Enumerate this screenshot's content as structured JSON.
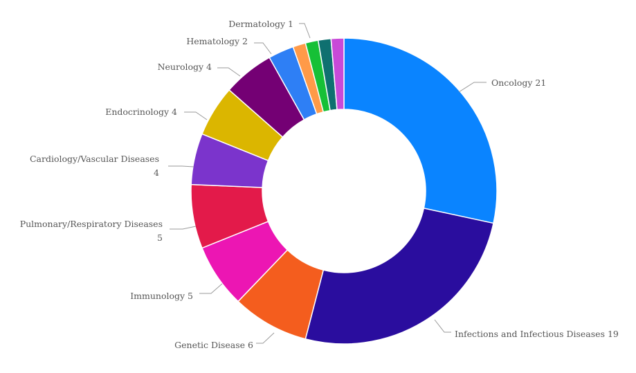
{
  "chart_data": {
    "type": "pie",
    "style": "donut",
    "title": "",
    "categories": [
      "Oncology",
      "Infections and Infectious Diseases",
      "Genetic Disease",
      "Immunology",
      "Pulmonary/Respiratory Diseases",
      "Cardiology/Vascular Diseases",
      "Endocrinology",
      "Neurology",
      "Hematology",
      "Dermatology",
      "",
      "",
      ""
    ],
    "values": [
      21,
      19,
      6,
      5,
      5,
      4,
      4,
      4,
      2,
      1,
      1,
      1,
      1
    ],
    "colors": [
      "#0a84ff",
      "#2a0d9e",
      "#f45d1e",
      "#ec16b3",
      "#e31a4a",
      "#7b34cc",
      "#dbb600",
      "#740074",
      "#2e7ff5",
      "#ff9a48",
      "#16c036",
      "#0f7070",
      "#c84ad8"
    ],
    "labels": [
      [
        "Oncology 21"
      ],
      [
        "Infections and Infectious Diseases 19"
      ],
      [
        "Genetic Disease 6"
      ],
      [
        "Immunology 5"
      ],
      [
        "Pulmonary/Respiratory Diseases",
        "5"
      ],
      [
        "Cardiology/Vascular Diseases",
        "4"
      ],
      [
        "Endocrinology 4"
      ],
      [
        "Neurology 4"
      ],
      [
        "Hematology 2"
      ],
      [
        "Dermatology 1"
      ],
      [],
      [],
      []
    ],
    "legend": "none"
  }
}
